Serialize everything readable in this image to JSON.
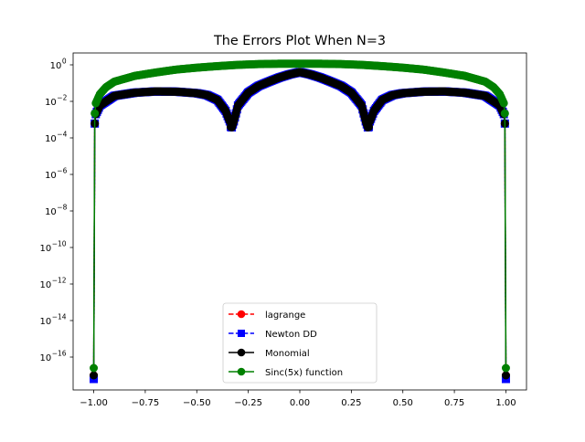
{
  "chart_data": {
    "type": "line",
    "title": "The Errors Plot When N=3",
    "xlabel": "",
    "ylabel": "",
    "xlim": [
      -1.1,
      1.1
    ],
    "ylim_log10": [
      -17.8,
      0.65
    ],
    "yscale": "log",
    "grid": false,
    "legend_position": "lower center",
    "x_ticks": [
      {
        "value": -1.0,
        "label": "−1.00"
      },
      {
        "value": -0.75,
        "label": "−0.75"
      },
      {
        "value": -0.5,
        "label": "−0.50"
      },
      {
        "value": -0.25,
        "label": "−0.25"
      },
      {
        "value": 0.0,
        "label": "0.00"
      },
      {
        "value": 0.25,
        "label": "0.25"
      },
      {
        "value": 0.5,
        "label": "0.50"
      },
      {
        "value": 0.75,
        "label": "0.75"
      },
      {
        "value": 1.0,
        "label": "1.00"
      }
    ],
    "y_ticks": [
      {
        "exp": 0,
        "base": "10",
        "sup": "0"
      },
      {
        "exp": -2,
        "base": "10",
        "sup": "−2"
      },
      {
        "exp": -4,
        "base": "10",
        "sup": "−4"
      },
      {
        "exp": -6,
        "base": "10",
        "sup": "−6"
      },
      {
        "exp": -8,
        "base": "10",
        "sup": "−8"
      },
      {
        "exp": -10,
        "base": "10",
        "sup": "−10"
      },
      {
        "exp": -12,
        "base": "10",
        "sup": "−12"
      },
      {
        "exp": -14,
        "base": "10",
        "sup": "−14"
      },
      {
        "exp": -16,
        "base": "10",
        "sup": "−16"
      }
    ],
    "error_curve_samples": {
      "description_free_x": [
        -1.0,
        -0.998,
        -0.99,
        -0.97,
        -0.9,
        -0.8,
        -0.7,
        -0.6,
        -0.5,
        -0.45,
        -0.4,
        -0.36,
        -0.34,
        -0.333,
        -0.32,
        -0.3,
        -0.25,
        -0.2,
        -0.15,
        -0.1,
        -0.05,
        0.0,
        0.05,
        0.1,
        0.15,
        0.2,
        0.25,
        0.3,
        0.32,
        0.333,
        0.34,
        0.36,
        0.4,
        0.45,
        0.5,
        0.6,
        0.7,
        0.8,
        0.9,
        0.97,
        0.99,
        0.998,
        1.0
      ],
      "y": [
        1e-17,
        0.0003,
        0.002,
        0.006,
        0.02,
        0.03,
        0.035,
        0.034,
        0.028,
        0.022,
        0.012,
        0.003,
        0.0008,
        0.0003,
        0.0008,
        0.006,
        0.03,
        0.07,
        0.12,
        0.2,
        0.3,
        0.4,
        0.3,
        0.2,
        0.12,
        0.07,
        0.03,
        0.006,
        0.0008,
        0.0003,
        0.0008,
        0.003,
        0.012,
        0.022,
        0.028,
        0.034,
        0.035,
        0.03,
        0.02,
        0.006,
        0.002,
        0.0003,
        1e-17
      ]
    },
    "sinc_curve_samples": {
      "x": [
        -1.0,
        -0.998,
        -0.99,
        -0.97,
        -0.94,
        -0.9,
        -0.8,
        -0.7,
        -0.6,
        -0.5,
        -0.4,
        -0.3,
        -0.2,
        -0.1,
        0.0,
        0.1,
        0.2,
        0.3,
        0.4,
        0.5,
        0.6,
        0.7,
        0.8,
        0.9,
        0.94,
        0.97,
        0.99,
        0.998,
        1.0
      ],
      "y": [
        2.5e-17,
        0.001,
        0.008,
        0.025,
        0.06,
        0.12,
        0.25,
        0.38,
        0.55,
        0.7,
        0.85,
        1.0,
        1.1,
        1.15,
        1.15,
        1.15,
        1.1,
        1.0,
        0.85,
        0.7,
        0.55,
        0.38,
        0.25,
        0.12,
        0.06,
        0.025,
        0.008,
        0.001,
        2.5e-17
      ]
    },
    "series": [
      {
        "name": "lagrange",
        "color": "#ff0000",
        "linestyle": "dashed",
        "marker": "circle",
        "curve": "error",
        "endpoint_log10": -17.0
      },
      {
        "name": "Newton DD",
        "color": "#0000ff",
        "linestyle": "dashed",
        "marker": "square",
        "curve": "error",
        "endpoint_log10": -17.2
      },
      {
        "name": "Monomial",
        "color": "#000000",
        "linestyle": "solid",
        "marker": "circle",
        "curve": "error",
        "endpoint_log10": -17.0
      },
      {
        "name": "Sinc(5x) function",
        "color": "#008000",
        "linestyle": "solid",
        "marker": "circle",
        "curve": "sinc",
        "endpoint_log10": -16.6
      }
    ]
  }
}
